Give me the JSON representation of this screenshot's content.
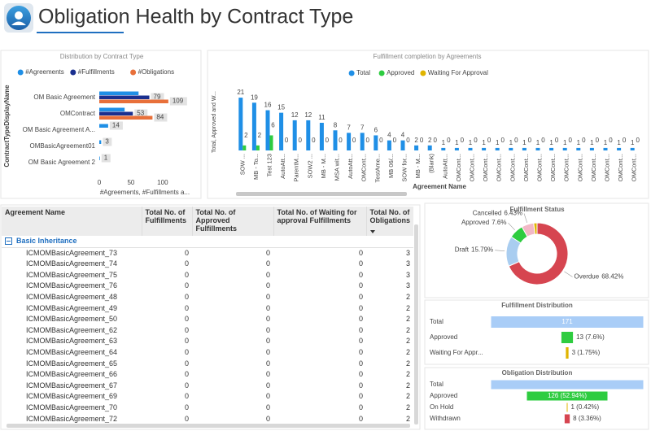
{
  "header": {
    "title": "Obligation Health by Contract Type"
  },
  "chart_data": [
    {
      "type": "grouped-hbar",
      "title": "Distribution by Contract Type",
      "x_label": "#Agreements, #Fulfillments a...",
      "y_label": "ContractTypeDisplayName",
      "categories": [
        "OM Basic Agreement",
        "OMContract",
        "OM Basic Agreement A...",
        "OMBasicAgreement01",
        "OM Basic Agreement 2"
      ],
      "series": [
        {
          "name": "#Agreements",
          "color": "#1f8fe6",
          "values": [
            62,
            40,
            14,
            3,
            1
          ],
          "value_labels": [
            null,
            null,
            "14",
            "3",
            "1"
          ]
        },
        {
          "name": "#Fulfillments",
          "color": "#1a2f8f",
          "values": [
            79,
            53,
            0,
            0,
            0
          ],
          "value_labels": [
            "79",
            "53",
            null,
            null,
            null
          ]
        },
        {
          "name": "#Obligations",
          "color": "#e8703a",
          "values": [
            109,
            84,
            0,
            0,
            0
          ],
          "value_labels": [
            "109",
            "84",
            null,
            null,
            null
          ]
        }
      ],
      "xlim": [
        0,
        140
      ],
      "xticks": [
        0,
        50,
        100
      ]
    },
    {
      "type": "bar",
      "title": "Fulfillment completion by Agreements",
      "x_label": "Agreement Name",
      "y_label": "Total, Approved and W...",
      "categories": [
        "SOW ...",
        "MB - To...",
        "Test 123",
        "AutoAtt...",
        "ParentM...",
        "SOW2 ...",
        "MB - M...",
        "MSA wit...",
        "AutoAtt...",
        "OMCont...",
        "TestAme...",
        "MB 06/...",
        "SOW for...",
        "MB - M...",
        "(Blank)",
        "AutoAtt...",
        "OMCont...",
        "OMCont...",
        "OMCont...",
        "OMCont...",
        "OMCont...",
        "OMCont...",
        "OMCont...",
        "OMCont...",
        "OMCont...",
        "OMCont...",
        "OMCont...",
        "OMCont...",
        "OMCont...",
        "OMCont..."
      ],
      "series": [
        {
          "name": "Total",
          "color": "#1f8fe6",
          "values": [
            21,
            19,
            16,
            15,
            12,
            12,
            11,
            8,
            7,
            7,
            6,
            4,
            4,
            2,
            2,
            1,
            1,
            1,
            1,
            1,
            1,
            1,
            1,
            1,
            1,
            1,
            1,
            1,
            1,
            1
          ]
        },
        {
          "name": "Approved",
          "color": "#2ecc40",
          "values": [
            2,
            2,
            6,
            0,
            0,
            0,
            0,
            0,
            0,
            0,
            0,
            0,
            0,
            0,
            0,
            0,
            0,
            0,
            0,
            0,
            0,
            0,
            0,
            0,
            0,
            0,
            0,
            0,
            0,
            0
          ]
        },
        {
          "name": "Waiting For Approval",
          "color": "#e0b400",
          "values": [
            0,
            0,
            0,
            0,
            0,
            0,
            0,
            0,
            0,
            0,
            0,
            0,
            0,
            0,
            0,
            0,
            0,
            0,
            0,
            0,
            0,
            0,
            0,
            0,
            0,
            0,
            0,
            0,
            0,
            0
          ]
        }
      ],
      "ylim": [
        0,
        22
      ]
    },
    {
      "type": "donut",
      "title": "Fulfillment Status",
      "categories": [
        "Overdue",
        "Draft",
        "Approved",
        "Cancelled",
        null
      ],
      "values": [
        68.42,
        15.79,
        7.6,
        6.43,
        1.75
      ],
      "value_labels": [
        "68.42%",
        "15.79%",
        "7.6%",
        "6.43%",
        null
      ],
      "colors": [
        "#d64550",
        "#a9cdf0",
        "#2ecc40",
        "#f2b8c6",
        "#e0b400"
      ]
    },
    {
      "type": "funnel",
      "title": "Fulfillment Distribution",
      "categories": [
        "Total",
        "Approved",
        "Waiting For Appr..."
      ],
      "values": [
        171,
        13,
        3
      ],
      "value_labels": [
        "171",
        "13 (7.6%)",
        "3 (1.75%)"
      ],
      "colors": [
        "#a9cdf7",
        "#2ecc40",
        "#e0b400"
      ]
    },
    {
      "type": "funnel",
      "title": "Obligation Distribution",
      "categories": [
        "Total",
        "Approved",
        "On Hold",
        "Withdrawn"
      ],
      "values": [
        238,
        126,
        1,
        8
      ],
      "value_labels": [
        null,
        "126 (52.94%)",
        "1 (0.42%)",
        "8 (3.36%)"
      ],
      "colors": [
        "#a9cdf7",
        "#2ecc40",
        "#e0b400",
        "#d64550"
      ]
    }
  ],
  "table": {
    "columns": [
      "Agreement Name",
      "Total No. of Fulfillments",
      "Total No. of Approved Fulfillments",
      "Total No. of Waiting for approval Fulfillments",
      "Total No. of Obligations"
    ],
    "group": "Basic Inheritance",
    "rows": [
      [
        "ICMOMBasicAgreement_73",
        "0",
        "0",
        "0",
        "3"
      ],
      [
        "ICMOMBasicAgreement_74",
        "0",
        "0",
        "0",
        "3"
      ],
      [
        "ICMOMBasicAgreement_75",
        "0",
        "0",
        "0",
        "3"
      ],
      [
        "ICMOMBasicAgreement_76",
        "0",
        "0",
        "0",
        "3"
      ],
      [
        "ICMOMBasicAgreement_48",
        "0",
        "0",
        "0",
        "2"
      ],
      [
        "ICMOMBasicAgreement_49",
        "0",
        "0",
        "0",
        "2"
      ],
      [
        "ICMOMBasicAgreement_50",
        "0",
        "0",
        "0",
        "2"
      ],
      [
        "ICMOMBasicAgreement_62",
        "0",
        "0",
        "0",
        "2"
      ],
      [
        "ICMOMBasicAgreement_63",
        "0",
        "0",
        "0",
        "2"
      ],
      [
        "ICMOMBasicAgreement_64",
        "0",
        "0",
        "0",
        "2"
      ],
      [
        "ICMOMBasicAgreement_65",
        "0",
        "0",
        "0",
        "2"
      ],
      [
        "ICMOMBasicAgreement_66",
        "0",
        "0",
        "0",
        "2"
      ],
      [
        "ICMOMBasicAgreement_67",
        "0",
        "0",
        "0",
        "2"
      ],
      [
        "ICMOMBasicAgreement_69",
        "0",
        "0",
        "0",
        "2"
      ],
      [
        "ICMOMBasicAgreement_70",
        "0",
        "0",
        "0",
        "2"
      ],
      [
        "ICMOMBasicAgreement_72",
        "0",
        "0",
        "0",
        "2"
      ]
    ]
  }
}
